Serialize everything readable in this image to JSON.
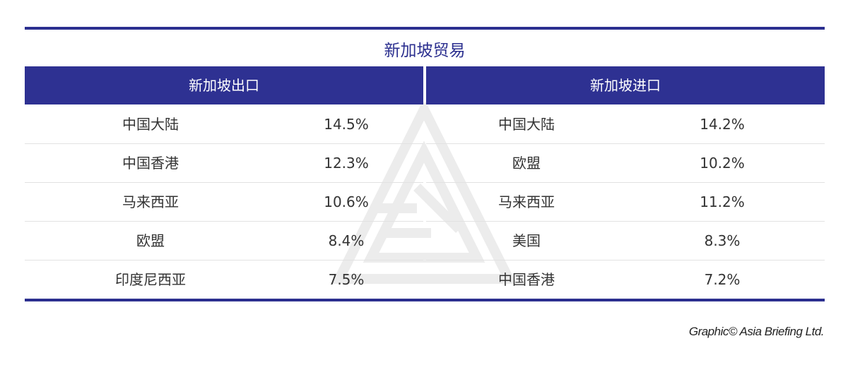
{
  "title": "新加坡贸易",
  "exports": {
    "header": "新加坡出口",
    "rows": [
      {
        "country": "中国大陆",
        "share": "14.5%"
      },
      {
        "country": "中国香港",
        "share": "12.3%"
      },
      {
        "country": "马来西亚",
        "share": "10.6%"
      },
      {
        "country": "欧盟",
        "share": "8.4%"
      },
      {
        "country": "印度尼西亚",
        "share": "7.5%"
      }
    ]
  },
  "imports": {
    "header": "新加坡进口",
    "rows": [
      {
        "country": "中国大陆",
        "share": "14.2%"
      },
      {
        "country": "欧盟",
        "share": "10.2%"
      },
      {
        "country": "马来西亚",
        "share": "11.2%"
      },
      {
        "country": "美国",
        "share": "8.3%"
      },
      {
        "country": "中国香港",
        "share": "7.2%"
      }
    ]
  },
  "footer": "Graphic© Asia Briefing Ltd.",
  "colors": {
    "accent": "#2e3192"
  }
}
